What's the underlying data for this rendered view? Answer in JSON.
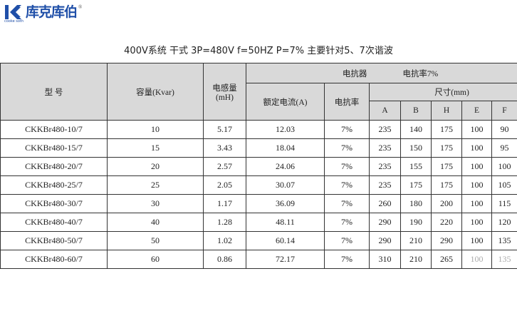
{
  "logo": {
    "text": "库克库伯",
    "sub": "cooke soth",
    "reg": "®"
  },
  "title": "400V系统  干式  3P=480V  f=50HZ  P=7%  主要针对5、7次谐波",
  "header": {
    "model": "型  号",
    "capacity": "容量(Kvar)",
    "inductance": "电感量",
    "inductance_unit": "(mH)",
    "reactor": "电抗器",
    "reactance_rate_label": "电抗率7%",
    "rated_current": "额定电流(A)",
    "reactance": "电抗率",
    "size": "尺寸(mm)",
    "dims": [
      "A",
      "B",
      "H",
      "E",
      "F"
    ]
  },
  "rows": [
    [
      "CKKBr480-10/7",
      "10",
      "5.17",
      "12.03",
      "7%",
      "235",
      "140",
      "175",
      "100",
      "90"
    ],
    [
      "CKKBr480-15/7",
      "15",
      "3.43",
      "18.04",
      "7%",
      "235",
      "150",
      "175",
      "100",
      "95"
    ],
    [
      "CKKBr480-20/7",
      "20",
      "2.57",
      "24.06",
      "7%",
      "235",
      "155",
      "175",
      "100",
      "100"
    ],
    [
      "CKKBr480-25/7",
      "25",
      "2.05",
      "30.07",
      "7%",
      "235",
      "175",
      "175",
      "100",
      "105"
    ],
    [
      "CKKBr480-30/7",
      "30",
      "1.17",
      "36.09",
      "7%",
      "260",
      "180",
      "200",
      "100",
      "115"
    ],
    [
      "CKKBr480-40/7",
      "40",
      "1.28",
      "48.11",
      "7%",
      "290",
      "190",
      "220",
      "100",
      "120"
    ],
    [
      "CKKBr480-50/7",
      "50",
      "1.02",
      "60.14",
      "7%",
      "290",
      "210",
      "290",
      "100",
      "135"
    ],
    [
      "CKKBr480-60/7",
      "60",
      "0.86",
      "72.17",
      "7%",
      "310",
      "210",
      "265",
      "100",
      "135"
    ]
  ]
}
